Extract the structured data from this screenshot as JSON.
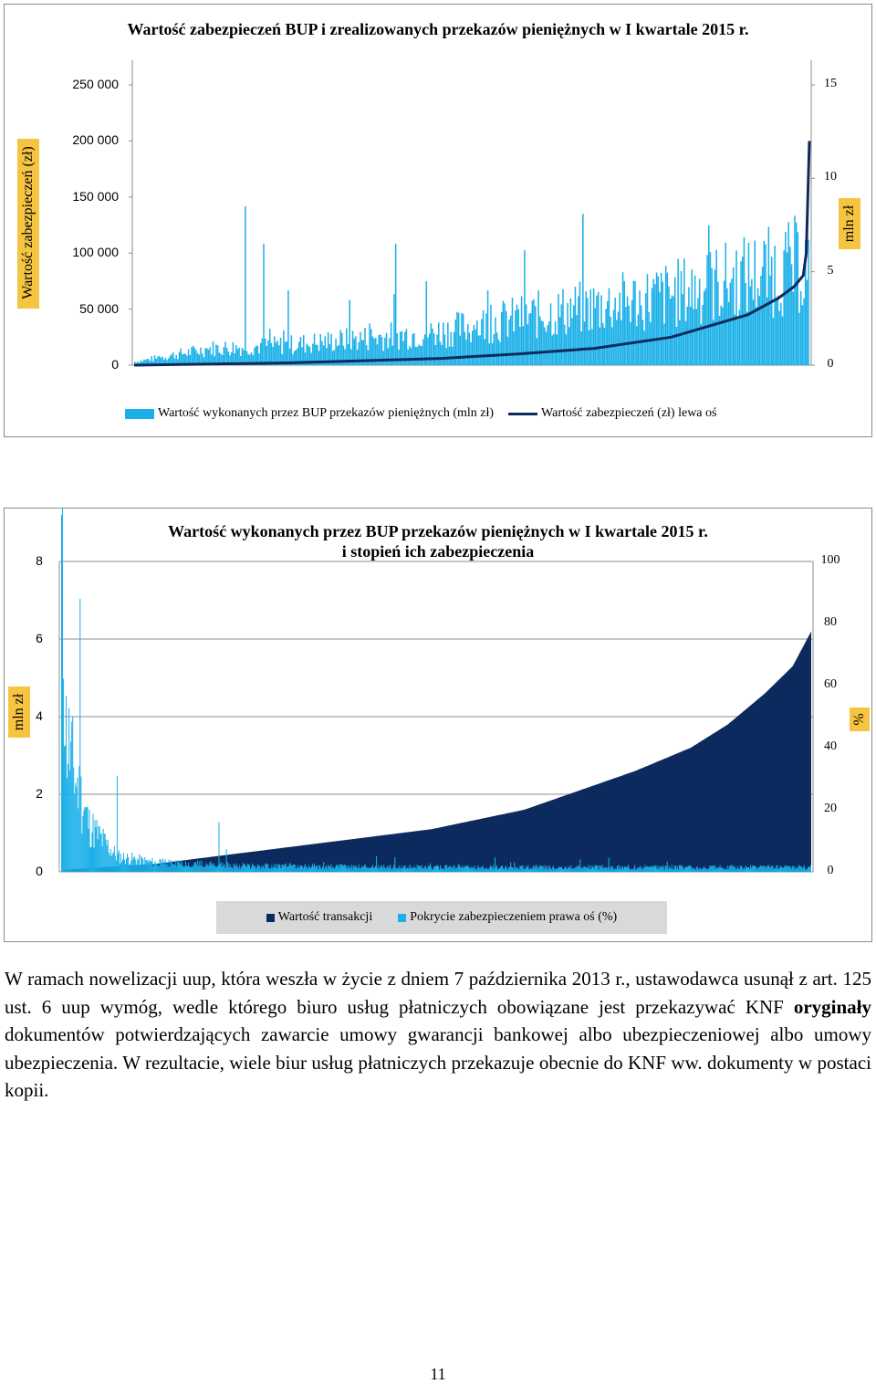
{
  "charts": {
    "chart1": {
      "title": "Wartość zabezpieczeń BUP i zrealizowanych przekazów pieniężnych w I kwartale 2015 r.",
      "y_left_title": "Wartość zabezpieczeń (zł)",
      "y_right_title": "mln zł",
      "y_left_ticks": [
        "0",
        "50 000",
        "100 000",
        "150 000",
        "200 000",
        "250 000"
      ],
      "y_right_ticks": [
        "0",
        "5",
        "10",
        "15"
      ],
      "legend": [
        "Wartość wykonanych przez BUP przekazów pieniężnych  (mln zł)",
        "Wartość zabezpieczeń (zł) lewa oś"
      ]
    },
    "chart2": {
      "title_line1": "Wartość wykonanych przez BUP przekazów pieniężnych w I kwartale 2015 r.",
      "title_line2": "i stopień ich zabezpieczenia",
      "y_left_title": "mln zł",
      "y_right_title": "%",
      "y_left_ticks": [
        "0",
        "2",
        "4",
        "6",
        "8"
      ],
      "y_right_ticks": [
        "0",
        "20",
        "40",
        "60",
        "80",
        "100"
      ],
      "legend": [
        "Wartość transakcji",
        "Pokrycie zabezpieczeniem prawa oś (%)"
      ]
    }
  },
  "chart_data": [
    {
      "type": "bar+line",
      "title": "Wartość zabezpieczeń BUP i zrealizowanych przekazów pieniężnych w I kwartale 2015 r.",
      "ylabel": "Wartość zabezpieczeń (zł)",
      "y2label": "mln zł",
      "ylim": [
        0,
        250000
      ],
      "y2lim": [
        0,
        15
      ],
      "grid": false,
      "legend_position": "bottom",
      "series": [
        {
          "name": "Wartość wykonanych przez BUP przekazów pieniężnych  (mln zł)",
          "kind": "bar",
          "axis": "right",
          "color": "#1ab0e8",
          "note_points": [
            [
              0,
              0.2
            ],
            [
              50,
              1.0
            ],
            [
              100,
              1.2
            ],
            [
              150,
              1.6
            ],
            [
              200,
              2.0
            ],
            [
              250,
              2.8
            ],
            [
              300,
              3.5
            ],
            [
              350,
              4.2
            ],
            [
              400,
              5.3
            ],
            [
              440,
              6.0
            ]
          ],
          "spikes": [
            [
              72,
              8.5
            ],
            [
              84,
              6.5
            ],
            [
              100,
              4.0
            ],
            [
              140,
              3.5
            ],
            [
              170,
              6.5
            ],
            [
              190,
              4.5
            ],
            [
              230,
              4.0
            ],
            [
              250,
              3.0
            ],
            [
              330,
              3.2
            ],
            [
              430,
              8.0
            ]
          ]
        },
        {
          "name": "Wartość zabezpieczeń (zł) lewa oś",
          "kind": "line",
          "axis": "left",
          "color": "#0d2a5e",
          "points": [
            [
              0,
              0
            ],
            [
              50,
              1000
            ],
            [
              100,
              2000
            ],
            [
              150,
              4000
            ],
            [
              200,
              6000
            ],
            [
              250,
              10000
            ],
            [
              300,
              15000
            ],
            [
              350,
              25000
            ],
            [
              400,
              45000
            ],
            [
              420,
              60000
            ],
            [
              430,
              70000
            ],
            [
              436,
              80000
            ],
            [
              438,
              100000
            ],
            [
              440,
              200000
            ]
          ]
        }
      ]
    },
    {
      "type": "area",
      "title": "Wartość wykonanych przez BUP przekazów pieniężnych w I kwartale 2015 r. i stopień ich zabezpieczenia",
      "ylabel": "mln zł",
      "y2label": "%",
      "ylim": [
        0,
        8
      ],
      "y2lim": [
        0,
        100
      ],
      "grid": true,
      "legend_position": "bottom",
      "series": [
        {
          "name": "Wartość transakcji",
          "axis": "left",
          "color": "#0d2a5e",
          "points": [
            [
              0,
              0.05
            ],
            [
              100,
              0.2
            ],
            [
              200,
              0.5
            ],
            [
              300,
              0.8
            ],
            [
              400,
              1.1
            ],
            [
              500,
              1.6
            ],
            [
              560,
              2.1
            ],
            [
              620,
              2.6
            ],
            [
              680,
              3.2
            ],
            [
              720,
              3.8
            ],
            [
              760,
              4.6
            ],
            [
              790,
              5.3
            ],
            [
              810,
              6.2
            ]
          ]
        },
        {
          "name": "Pokrycie zabezpieczeniem prawa oś (%)",
          "axis": "right",
          "color": "#1ab0e8",
          "points": [
            [
              0,
              100
            ],
            [
              5,
              45
            ],
            [
              15,
              30
            ],
            [
              30,
              15
            ],
            [
              60,
              5
            ],
            [
              100,
              3
            ],
            [
              200,
              2
            ],
            [
              400,
              1.5
            ],
            [
              600,
              1.5
            ],
            [
              810,
              1.5
            ]
          ],
          "spikes": [
            [
              20,
              88
            ],
            [
              60,
              31
            ],
            [
              170,
              16
            ],
            [
              340,
              5
            ],
            [
              560,
              4
            ]
          ]
        }
      ]
    }
  ],
  "body_text": "W ramach nowelizacji uup, która weszła w życie z dniem 7 października 2013 r., ustawodawca usunął z art. 125 ust. 6 uup wymóg, wedle którego biuro usług płatniczych obowiązane jest przekazywać KNF ",
  "body_text_bold": "oryginały",
  "body_text_rest": " dokumentów potwierdzających zawarcie umowy gwarancji bankowej albo ubezpieczeniowej albo umowy ubezpieczenia. W rezultacie, wiele biur usług płatniczych przekazuje obecnie do KNF ww. dokumenty w postaci kopii.",
  "page_number": "11",
  "colors": {
    "navy": "#0d2a5e",
    "lightblue": "#1ab0e8",
    "axis_title_bg": "#f5c542"
  }
}
